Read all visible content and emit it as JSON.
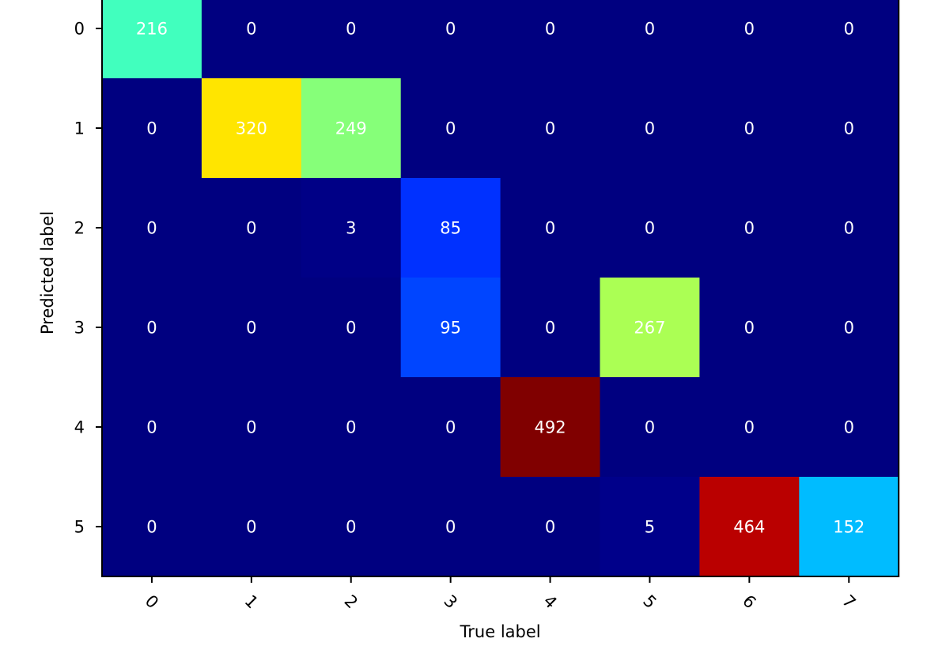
{
  "chart_data": {
    "type": "heatmap",
    "title": "",
    "xlabel": "True label",
    "ylabel": "Predicted label",
    "x_categories": [
      "0",
      "1",
      "2",
      "3",
      "4",
      "5",
      "6",
      "7"
    ],
    "y_categories": [
      "0",
      "1",
      "2",
      "3",
      "4",
      "5"
    ],
    "values": [
      [
        216,
        0,
        0,
        0,
        0,
        0,
        0,
        0
      ],
      [
        0,
        320,
        249,
        0,
        0,
        0,
        0,
        0
      ],
      [
        0,
        0,
        3,
        85,
        0,
        0,
        0,
        0
      ],
      [
        0,
        0,
        0,
        95,
        0,
        267,
        0,
        0
      ],
      [
        0,
        0,
        0,
        0,
        492,
        0,
        0,
        0
      ],
      [
        0,
        0,
        0,
        0,
        0,
        5,
        464,
        152
      ]
    ],
    "colormap": "jet",
    "vmin": 0,
    "vmax": 492,
    "x_tick_rotation": 45,
    "grid": false
  }
}
